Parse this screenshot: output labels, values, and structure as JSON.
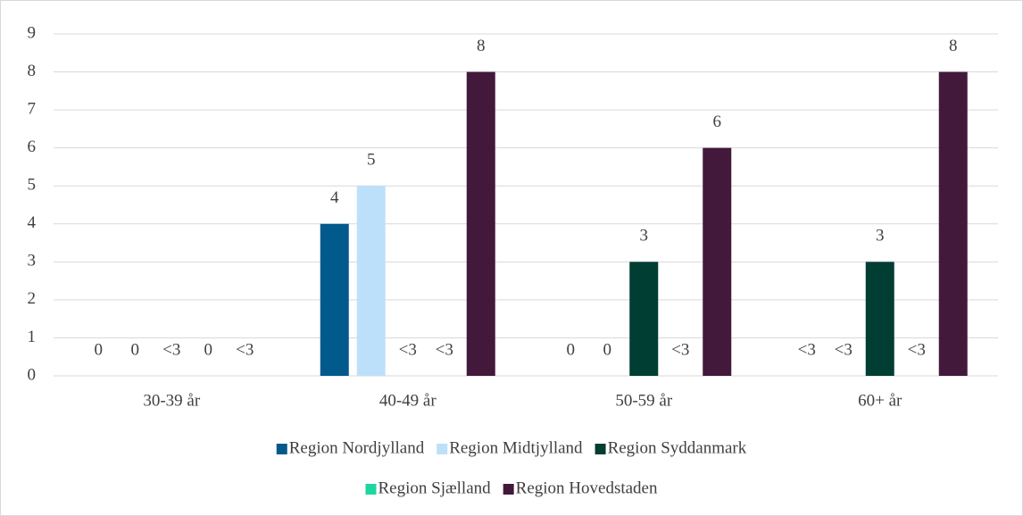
{
  "chart_data": {
    "type": "bar",
    "categories": [
      "30-39 år",
      "40-49 år",
      "50-59 år",
      "60+ år"
    ],
    "series": [
      {
        "name": "Region Nordjylland",
        "color": "#02598c",
        "values": [
          0,
          4,
          0,
          null
        ],
        "value_labels": [
          "0",
          "4",
          "0",
          "<3"
        ]
      },
      {
        "name": "Region Midtjylland",
        "color": "#bde0fa",
        "values": [
          0,
          5,
          0,
          null
        ],
        "value_labels": [
          "0",
          "5",
          "0",
          "<3"
        ]
      },
      {
        "name": "Region Syddanmark",
        "color": "#003d33",
        "values": [
          null,
          null,
          3,
          3
        ],
        "value_labels": [
          "<3",
          "<3",
          "3",
          "3"
        ]
      },
      {
        "name": "Region Sjælland",
        "color": "#1fd5a0",
        "values": [
          0,
          null,
          null,
          null
        ],
        "value_labels": [
          "0",
          "<3",
          "<3",
          "<3"
        ]
      },
      {
        "name": "Region Hovedstaden",
        "color": "#43193b",
        "values": [
          null,
          8,
          6,
          8
        ],
        "value_labels": [
          "<3",
          "8",
          "6",
          "8"
        ]
      }
    ],
    "ylim": [
      0,
      9
    ],
    "yticks": [
      0,
      1,
      2,
      3,
      4,
      5,
      6,
      7,
      8,
      9
    ],
    "grid": true
  }
}
